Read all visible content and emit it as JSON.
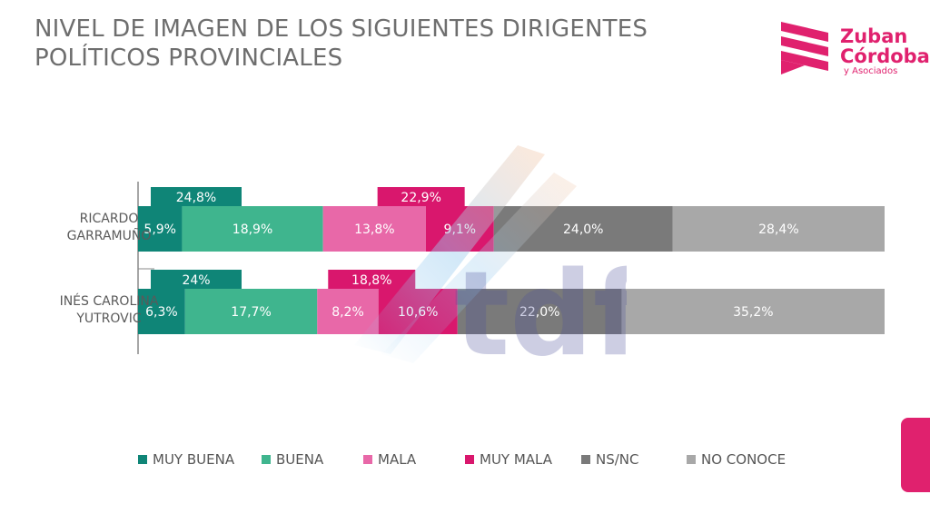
{
  "header": {
    "title_line1": "NIVEL DE IMAGEN DE LOS SIGUIENTES DIRIGENTES",
    "title_line2": "POLÍTICOS PROVINCIALES"
  },
  "brand": {
    "line1": "Zuban",
    "line2": "Córdoba",
    "line3": "y Asociados",
    "logo_icon": "zuban-cordoba-stripes-icon",
    "color": "#e0216e"
  },
  "watermark": {
    "text": "tdf"
  },
  "chart_data": {
    "type": "bar",
    "orientation": "horizontal",
    "stacked": true,
    "categories": [
      "RICARDO GARRAMUÑO",
      "INÉS CAROLINA YUTROVIC"
    ],
    "category_lines": [
      [
        "RICARDO",
        "GARRAMUÑO"
      ],
      [
        "INÉS CAROLINA",
        "YUTROVIC"
      ]
    ],
    "series": [
      {
        "name": "MUY BUENA",
        "color": "#0f8577",
        "values": [
          5.9,
          6.3
        ],
        "labels": [
          "5,9%",
          "6,3%"
        ]
      },
      {
        "name": "BUENA",
        "color": "#3fb58e",
        "values": [
          18.9,
          17.7
        ],
        "labels": [
          "18,9%",
          "17,7%"
        ]
      },
      {
        "name": "MALA",
        "color": "#e868a8",
        "values": [
          13.8,
          8.2
        ],
        "labels": [
          "13,8%",
          "8,2%"
        ]
      },
      {
        "name": "MUY MALA",
        "color": "#d9176d",
        "values": [
          9.1,
          10.6
        ],
        "labels": [
          "9,1%",
          "10,6%"
        ]
      },
      {
        "name": "NS/NC",
        "color": "#7a7a7a",
        "values": [
          24.0,
          22.0
        ],
        "labels": [
          "24,0%",
          "22,0%"
        ]
      },
      {
        "name": "NO CONOCE",
        "color": "#a8a8a8",
        "values": [
          28.4,
          35.2
        ],
        "labels": [
          "28,4%",
          "35,2%"
        ]
      }
    ],
    "positive_totals": {
      "values": [
        24.8,
        24
      ],
      "labels": [
        "24,8%",
        "24%"
      ],
      "color": "#0f8577"
    },
    "negative_totals": {
      "values": [
        22.9,
        18.8
      ],
      "labels": [
        "22,9%",
        "18,8%"
      ],
      "color": "#d9176d"
    },
    "xlim": [
      0,
      100
    ],
    "grid": false,
    "legend_position": "bottom"
  }
}
